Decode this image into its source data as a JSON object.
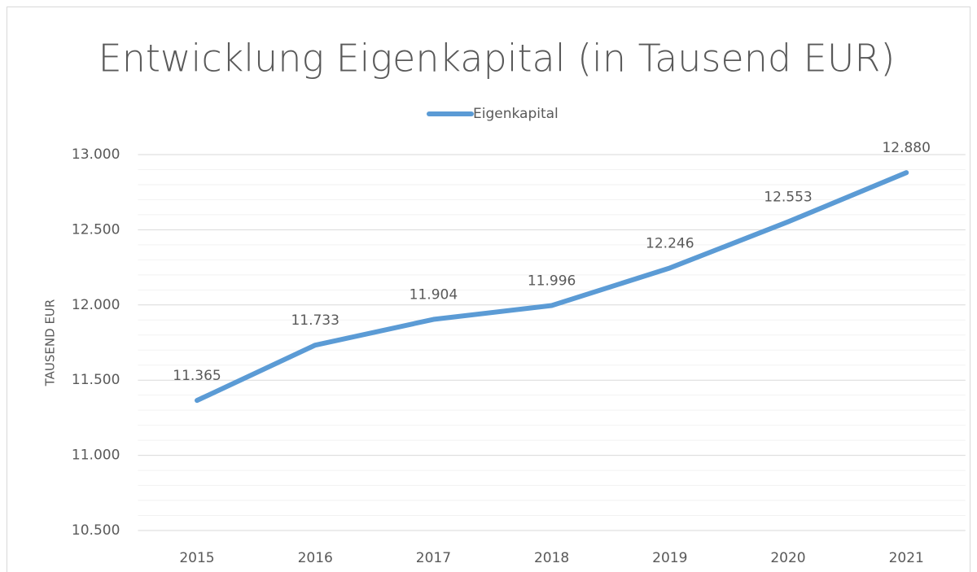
{
  "chart_data": {
    "type": "line",
    "title": "Entwicklung Eigenkapital (in Tausend EUR)",
    "y_label": "TAUSEND EUR",
    "categories": [
      "2015",
      "2016",
      "2017",
      "2018",
      "2019",
      "2020",
      "2021"
    ],
    "series": [
      {
        "name": "Eigenkapital",
        "color": "#5b9bd5",
        "values": [
          11365,
          11733,
          11904,
          11996,
          12246,
          12553,
          12880
        ],
        "value_labels": [
          "11.365",
          "11.733",
          "11.904",
          "11.996",
          "12.246",
          "12.553",
          "12.880"
        ]
      }
    ],
    "ylim": [
      10500,
      13000
    ],
    "yticks": [
      {
        "value": 10500,
        "label": "10.500"
      },
      {
        "value": 11000,
        "label": "11.000"
      },
      {
        "value": 11500,
        "label": "11.500"
      },
      {
        "value": 12000,
        "label": "12.000"
      },
      {
        "value": 12500,
        "label": "12.500"
      },
      {
        "value": 13000,
        "label": "13.000"
      }
    ],
    "grid": true,
    "minor_grid": true,
    "legend": "top"
  }
}
